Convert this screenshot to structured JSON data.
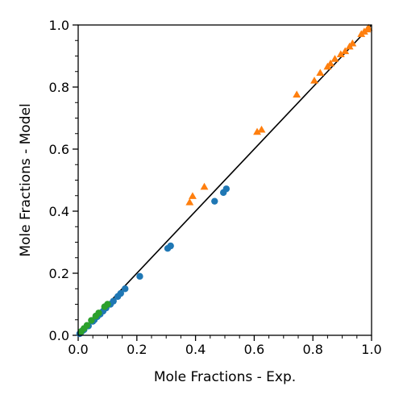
{
  "chart_data": {
    "type": "scatter",
    "title": "",
    "xlabel": "Mole Fractions - Exp.",
    "ylabel": "Mole Fractions - Model",
    "xlim": [
      0,
      1
    ],
    "ylim": [
      0,
      1
    ],
    "x_ticks": [
      "0.0",
      "0.2",
      "0.4",
      "0.6",
      "0.8",
      "1.0"
    ],
    "y_ticks": [
      "0.0",
      "0.2",
      "0.4",
      "0.6",
      "0.8",
      "1.0"
    ],
    "grid": false,
    "legend": "none",
    "reference_line": {
      "x": [
        0,
        1
      ],
      "y": [
        0,
        1
      ],
      "color": "#000000"
    },
    "series": [
      {
        "marker": "circle",
        "color": "#1f77b4",
        "points": [
          [
            0.005,
            0.005
          ],
          [
            0.01,
            0.01
          ],
          [
            0.015,
            0.015
          ],
          [
            0.02,
            0.018
          ],
          [
            0.035,
            0.03
          ],
          [
            0.05,
            0.045
          ],
          [
            0.055,
            0.05
          ],
          [
            0.065,
            0.06
          ],
          [
            0.075,
            0.068
          ],
          [
            0.085,
            0.078
          ],
          [
            0.095,
            0.088
          ],
          [
            0.11,
            0.1
          ],
          [
            0.12,
            0.11
          ],
          [
            0.135,
            0.125
          ],
          [
            0.145,
            0.135
          ],
          [
            0.16,
            0.15
          ],
          [
            0.21,
            0.19
          ],
          [
            0.305,
            0.28
          ],
          [
            0.315,
            0.288
          ],
          [
            0.465,
            0.432
          ],
          [
            0.495,
            0.46
          ],
          [
            0.505,
            0.472
          ]
        ]
      },
      {
        "marker": "triangle",
        "color": "#ff7f0e",
        "points": [
          [
            0.38,
            0.428
          ],
          [
            0.39,
            0.448
          ],
          [
            0.43,
            0.478
          ],
          [
            0.61,
            0.655
          ],
          [
            0.625,
            0.662
          ],
          [
            0.745,
            0.775
          ],
          [
            0.805,
            0.82
          ],
          [
            0.825,
            0.845
          ],
          [
            0.85,
            0.865
          ],
          [
            0.86,
            0.875
          ],
          [
            0.875,
            0.89
          ],
          [
            0.895,
            0.905
          ],
          [
            0.91,
            0.915
          ],
          [
            0.925,
            0.93
          ],
          [
            0.935,
            0.94
          ],
          [
            0.965,
            0.97
          ],
          [
            0.975,
            0.978
          ],
          [
            0.985,
            0.985
          ],
          [
            0.99,
            0.99
          ]
        ]
      },
      {
        "marker": "circle",
        "color": "#2ca02c",
        "points": [
          [
            0.01,
            0.012
          ],
          [
            0.02,
            0.022
          ],
          [
            0.03,
            0.032
          ],
          [
            0.045,
            0.048
          ],
          [
            0.06,
            0.062
          ],
          [
            0.07,
            0.072
          ],
          [
            0.09,
            0.092
          ],
          [
            0.1,
            0.1
          ]
        ]
      }
    ]
  }
}
